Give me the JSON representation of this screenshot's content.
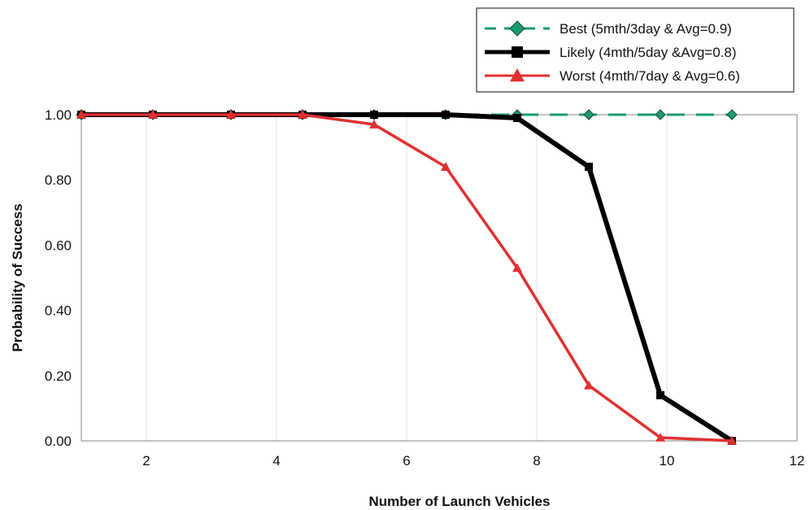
{
  "chart_data": {
    "type": "line",
    "xlabel": "Number of Launch Vehicles",
    "ylabel": "Probability of Success",
    "xlim": [
      1,
      12
    ],
    "ylim": [
      0,
      1
    ],
    "x_ticks": [
      2,
      4,
      6,
      8,
      10,
      12
    ],
    "y_ticks": [
      "0.00",
      "0.20",
      "0.40",
      "0.60",
      "0.80",
      "1.00"
    ],
    "grid": "vertical",
    "legend_position": "top-right",
    "series": [
      {
        "name": "Best (5mth/3day & Avg=0.9)",
        "color": "#1e9a6e",
        "marker": "diamond",
        "line_style": "dashed",
        "x": [
          1,
          2.1,
          3.3,
          4.4,
          5.5,
          6.6,
          7.7,
          8.8,
          9.9,
          11
        ],
        "y": [
          1.0,
          1.0,
          1.0,
          1.0,
          1.0,
          1.0,
          1.0,
          1.0,
          1.0,
          1.0
        ]
      },
      {
        "name": "Likely (4mth/5day &Avg=0.8)",
        "color": "#000000",
        "marker": "square",
        "line_style": "solid",
        "x": [
          1,
          2.1,
          3.3,
          4.4,
          5.5,
          6.6,
          7.7,
          8.8,
          9.9,
          11
        ],
        "y": [
          1.0,
          1.0,
          1.0,
          1.0,
          1.0,
          1.0,
          0.99,
          0.84,
          0.14,
          0.0
        ]
      },
      {
        "name": "Worst (4mth/7day & Avg=0.6)",
        "color": "#e03030",
        "marker": "triangle",
        "line_style": "solid",
        "x": [
          1,
          2.1,
          3.3,
          4.4,
          5.5,
          6.6,
          7.7,
          8.8,
          9.9,
          11
        ],
        "y": [
          1.0,
          1.0,
          1.0,
          1.0,
          0.97,
          0.84,
          0.53,
          0.17,
          0.01,
          0.0
        ]
      }
    ]
  }
}
